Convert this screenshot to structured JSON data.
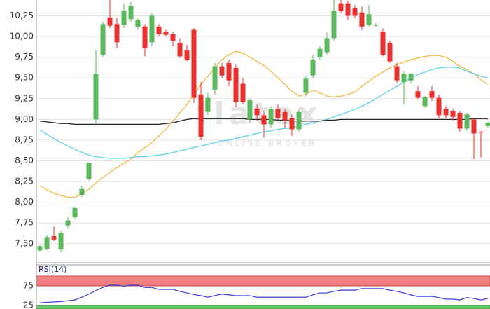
{
  "chart_data": [
    {
      "type": "candlestick",
      "watermark": "flatex",
      "watermark_subtitle": "ONLINE BROKER",
      "up_color": "#5cb85c",
      "down_color": "#e8302f",
      "open": [
        7.42,
        7.44,
        7.59,
        7.43,
        7.72,
        7.82,
        8.09,
        8.28,
        9.0,
        9.78,
        10.23,
        10.15,
        10.14,
        10.21,
        10.12,
        10.12,
        9.93,
        10.12,
        10.06,
        10.03,
        9.92,
        9.83,
        10.08,
        9.3,
        9.09,
        9.36,
        9.64,
        9.68,
        9.62,
        9.43,
        9.0,
        9.13,
        9.05,
        8.94,
        9.13,
        9.09,
        9.02,
        8.88,
        9.32,
        9.53,
        9.75,
        9.81,
        9.98,
        10.4,
        10.4,
        10.34,
        10.29,
        10.14,
        10.14,
        10.06,
        9.92,
        9.64,
        9.45,
        9.47,
        9.34,
        9.16,
        9.34,
        9.26,
        9.13,
        9.1,
        9.08,
        8.89,
        9.0,
        8.85,
        8.92
      ],
      "high": [
        7.48,
        7.6,
        7.71,
        7.66,
        7.82,
        7.95,
        8.2,
        8.48,
        9.83,
        10.18,
        10.44,
        10.22,
        10.4,
        10.42,
        10.22,
        10.15,
        10.28,
        10.15,
        10.08,
        10.06,
        9.98,
        9.9,
        10.1,
        9.45,
        9.32,
        9.68,
        9.68,
        9.72,
        9.66,
        9.5,
        9.25,
        9.18,
        9.1,
        9.16,
        9.18,
        9.12,
        9.06,
        9.12,
        9.52,
        9.78,
        9.88,
        10.05,
        10.44,
        10.44,
        10.43,
        10.38,
        10.36,
        10.38,
        10.16,
        10.1,
        9.95,
        9.68,
        9.58,
        9.56,
        9.4,
        9.28,
        9.4,
        9.3,
        9.16,
        9.13,
        9.1,
        9.08,
        9.02,
        8.86,
        8.97
      ],
      "low": [
        7.4,
        7.42,
        7.53,
        7.4,
        7.68,
        7.8,
        8.06,
        8.26,
        8.94,
        9.75,
        10.1,
        9.86,
        10.1,
        10.18,
        10.08,
        9.76,
        9.88,
        10.0,
        10.0,
        9.88,
        9.74,
        9.7,
        9.2,
        8.75,
        9.05,
        9.3,
        9.5,
        9.4,
        9.15,
        9.18,
        8.95,
        8.98,
        8.78,
        8.9,
        8.98,
        8.9,
        8.8,
        8.85,
        9.28,
        9.5,
        9.72,
        9.78,
        9.95,
        10.28,
        10.2,
        10.22,
        10.08,
        10.12,
        10.12,
        9.76,
        9.68,
        9.44,
        9.18,
        9.44,
        9.24,
        9.14,
        9.22,
        9.02,
        9.02,
        8.98,
        8.85,
        8.86,
        8.52,
        8.54,
        8.9
      ],
      "close": [
        7.47,
        7.58,
        7.55,
        7.63,
        7.78,
        7.93,
        8.16,
        8.48,
        9.55,
        10.15,
        10.13,
        9.93,
        10.31,
        10.37,
        10.2,
        9.86,
        10.25,
        10.03,
        10.02,
        9.95,
        9.76,
        9.72,
        9.26,
        8.79,
        9.26,
        9.64,
        9.53,
        9.47,
        9.21,
        9.21,
        9.23,
        9.05,
        8.94,
        9.13,
        9.02,
        8.99,
        8.88,
        9.09,
        9.49,
        9.72,
        9.85,
        9.98,
        10.31,
        10.31,
        10.25,
        10.25,
        10.12,
        10.27,
        10.14,
        9.78,
        9.7,
        9.47,
        9.55,
        9.55,
        9.26,
        9.27,
        9.26,
        9.05,
        9.05,
        9.03,
        8.89,
        9.06,
        8.83,
        8.84,
        8.96
      ],
      "series": [
        {
          "color": "#f5b942",
          "values": [
            8.2,
            8.15,
            8.11,
            8.08,
            8.06,
            8.06,
            8.1,
            8.16,
            8.23,
            8.3,
            8.36,
            8.42,
            8.47,
            8.52,
            8.6,
            8.66,
            8.72,
            8.8,
            8.88,
            8.98,
            9.08,
            9.18,
            9.3,
            9.42,
            9.52,
            9.62,
            9.72,
            9.78,
            9.82,
            9.8,
            9.75,
            9.7,
            9.65,
            9.58,
            9.5,
            9.42,
            9.34,
            9.28,
            9.3,
            9.35,
            9.32,
            9.28,
            9.27,
            9.28,
            9.3,
            9.33,
            9.4,
            9.46,
            9.52,
            9.57,
            9.62,
            9.66,
            9.69,
            9.72,
            9.74,
            9.76,
            9.77,
            9.77,
            9.75,
            9.7,
            9.64,
            9.6,
            9.55,
            9.48,
            9.42
          ]
        },
        {
          "color": "#5bd3ea",
          "values": [
            8.87,
            8.82,
            8.77,
            8.72,
            8.68,
            8.64,
            8.6,
            8.57,
            8.55,
            8.54,
            8.53,
            8.53,
            8.53,
            8.54,
            8.55,
            8.55,
            8.56,
            8.57,
            8.58,
            8.6,
            8.62,
            8.64,
            8.66,
            8.68,
            8.7,
            8.72,
            8.74,
            8.75,
            8.77,
            8.79,
            8.81,
            8.83,
            8.85,
            8.86,
            8.88,
            8.89,
            8.9,
            8.92,
            8.94,
            8.96,
            8.98,
            9.0,
            9.03,
            9.06,
            9.09,
            9.12,
            9.16,
            9.2,
            9.25,
            9.3,
            9.35,
            9.4,
            9.45,
            9.5,
            9.54,
            9.57,
            9.6,
            9.62,
            9.63,
            9.63,
            9.62,
            9.58,
            9.55,
            9.52,
            9.5
          ]
        },
        {
          "color": "#222222",
          "values": [
            8.98,
            8.97,
            8.96,
            8.95,
            8.95,
            8.94,
            8.94,
            8.94,
            8.94,
            8.94,
            8.94,
            8.94,
            8.94,
            8.94,
            8.94,
            8.94,
            8.94,
            8.94,
            8.95,
            8.96,
            8.98,
            9.0,
            9.01,
            9.01,
            9.01,
            9.01,
            9.01,
            9.01,
            9.01,
            9.01,
            9.0,
            9.0,
            9.0,
            9.0,
            8.99,
            8.99,
            8.98,
            8.98,
            8.98,
            8.98,
            8.98,
            8.99,
            8.99,
            9.0,
            9.0,
            9.0,
            9.0,
            9.0,
            9.0,
            9.0,
            9.0,
            9.0,
            9.0,
            9.0,
            9.0,
            9.0,
            9.0,
            9.0,
            9.0,
            9.0,
            9.0,
            9.0,
            9.01,
            9.01,
            9.01
          ]
        }
      ],
      "ylim": [
        7.27,
        10.44
      ],
      "yticks": [
        {
          "value": 7.5,
          "label": "7,50"
        },
        {
          "value": 7.75,
          "label": "7,75"
        },
        {
          "value": 8.0,
          "label": "8,00"
        },
        {
          "value": 8.25,
          "label": "8,25"
        },
        {
          "value": 8.5,
          "label": "8,50"
        },
        {
          "value": 8.75,
          "label": "8,75"
        },
        {
          "value": 9.0,
          "label": "9,00"
        },
        {
          "value": 9.25,
          "label": "9,25"
        },
        {
          "value": 9.5,
          "label": "9,50"
        },
        {
          "value": 9.75,
          "label": "9,75"
        },
        {
          "value": 10.0,
          "label": "10,00"
        },
        {
          "value": 10.25,
          "label": "10,25"
        }
      ],
      "grid": true
    },
    {
      "type": "line",
      "title": "RSI(14)",
      "color": "#3a3adf",
      "upper_band_color": "#f08080",
      "lower_band_color": "#6cc66c",
      "values": [
        32,
        33,
        34,
        35,
        37,
        39,
        46,
        54,
        63,
        71,
        77,
        77,
        74,
        77,
        77,
        71,
        71,
        66,
        66,
        66,
        61,
        57,
        53,
        50,
        46,
        50,
        54,
        52,
        50,
        50,
        50,
        46,
        46,
        46,
        46,
        46,
        46,
        46,
        46,
        52,
        57,
        57,
        61,
        64,
        64,
        64,
        68,
        68,
        68,
        68,
        64,
        61,
        57,
        52,
        48,
        48,
        48,
        45,
        41,
        41,
        39,
        45,
        43,
        39,
        43
      ],
      "ylim": [
        16,
        100
      ],
      "yticks": [
        25,
        75
      ]
    }
  ]
}
